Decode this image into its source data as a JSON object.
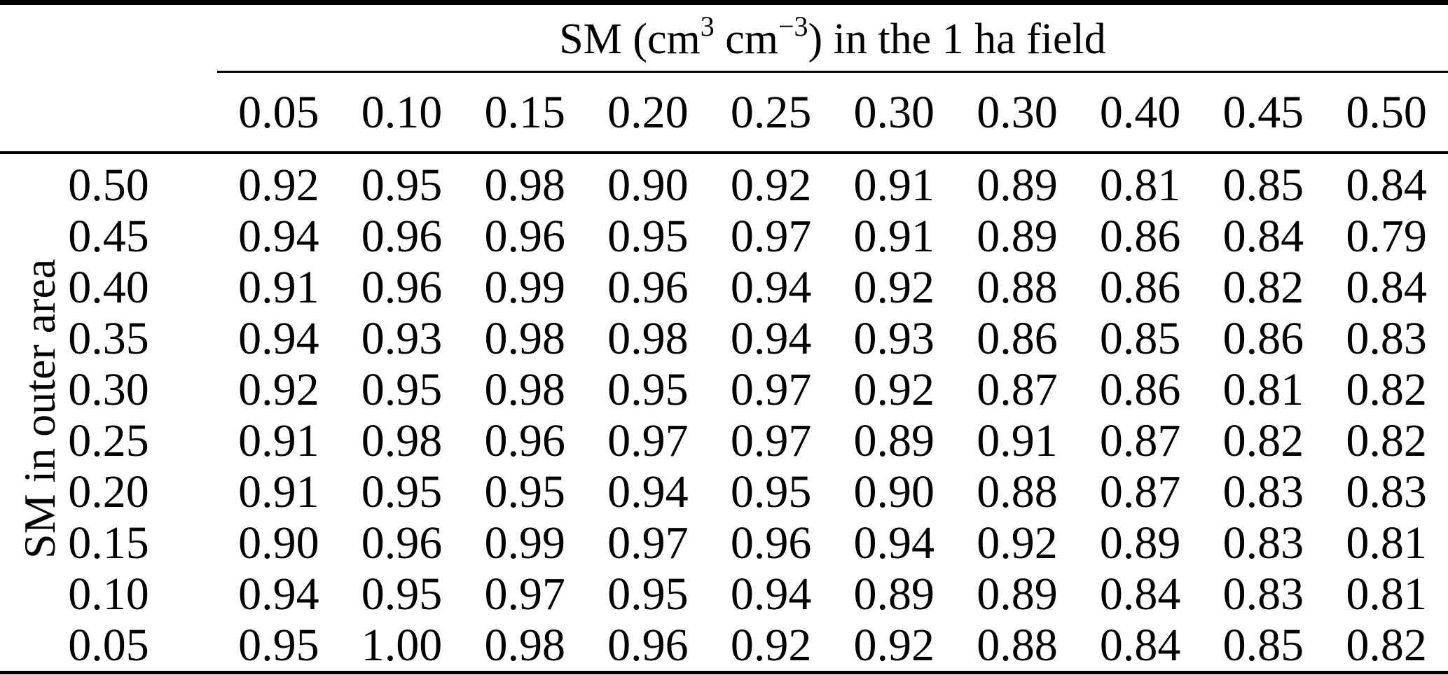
{
  "colors": {
    "background": "#ffffff",
    "text": "#000000",
    "rule": "#000000"
  },
  "table": {
    "span_header": {
      "pre": "SM (cm",
      "sup1": "3",
      "mid": " cm",
      "sup2": "−3",
      "post": ") in the 1 ha field"
    },
    "row_axis_label": "SM in outer area",
    "columns": [
      "0.05",
      "0.10",
      "0.15",
      "0.20",
      "0.25",
      "0.30",
      "0.30",
      "0.40",
      "0.45",
      "0.50"
    ],
    "rows": [
      {
        "label": "0.50",
        "values": [
          "0.92",
          "0.95",
          "0.98",
          "0.90",
          "0.92",
          "0.91",
          "0.89",
          "0.81",
          "0.85",
          "0.84"
        ]
      },
      {
        "label": "0.45",
        "values": [
          "0.94",
          "0.96",
          "0.96",
          "0.95",
          "0.97",
          "0.91",
          "0.89",
          "0.86",
          "0.84",
          "0.79"
        ]
      },
      {
        "label": "0.40",
        "values": [
          "0.91",
          "0.96",
          "0.99",
          "0.96",
          "0.94",
          "0.92",
          "0.88",
          "0.86",
          "0.82",
          "0.84"
        ]
      },
      {
        "label": "0.35",
        "values": [
          "0.94",
          "0.93",
          "0.98",
          "0.98",
          "0.94",
          "0.93",
          "0.86",
          "0.85",
          "0.86",
          "0.83"
        ]
      },
      {
        "label": "0.30",
        "values": [
          "0.92",
          "0.95",
          "0.98",
          "0.95",
          "0.97",
          "0.92",
          "0.87",
          "0.86",
          "0.81",
          "0.82"
        ]
      },
      {
        "label": "0.25",
        "values": [
          "0.91",
          "0.98",
          "0.96",
          "0.97",
          "0.97",
          "0.89",
          "0.91",
          "0.87",
          "0.82",
          "0.82"
        ]
      },
      {
        "label": "0.20",
        "values": [
          "0.91",
          "0.95",
          "0.95",
          "0.94",
          "0.95",
          "0.90",
          "0.88",
          "0.87",
          "0.83",
          "0.83"
        ]
      },
      {
        "label": "0.15",
        "values": [
          "0.90",
          "0.96",
          "0.99",
          "0.97",
          "0.96",
          "0.94",
          "0.92",
          "0.89",
          "0.83",
          "0.81"
        ]
      },
      {
        "label": "0.10",
        "values": [
          "0.94",
          "0.95",
          "0.97",
          "0.95",
          "0.94",
          "0.89",
          "0.89",
          "0.84",
          "0.83",
          "0.81"
        ]
      },
      {
        "label": "0.05",
        "values": [
          "0.95",
          "1.00",
          "0.98",
          "0.96",
          "0.92",
          "0.92",
          "0.88",
          "0.84",
          "0.85",
          "0.82"
        ]
      }
    ]
  }
}
